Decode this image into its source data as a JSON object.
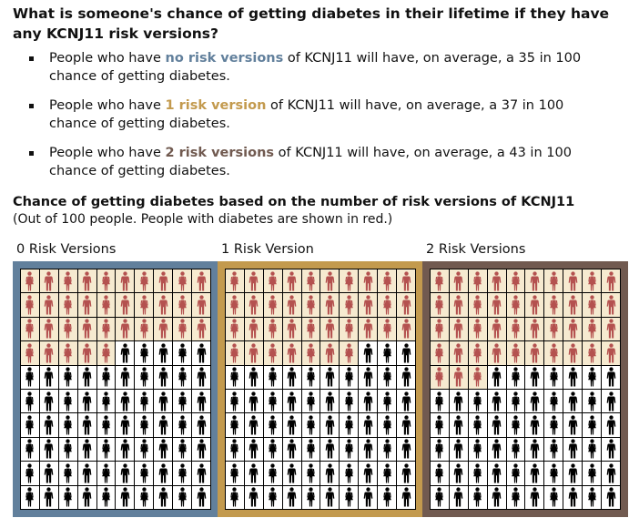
{
  "question": "What is someone's chance of getting diabetes in their lifetime if they have any KCNJ11 risk versions?",
  "bullets": [
    {
      "pre": "People who have ",
      "highlight": "no risk versions",
      "post": " of KCNJ11 will have, on average, a 35 in 100 chance of getting diabetes.",
      "color": "#62809c"
    },
    {
      "pre": "People who have ",
      "highlight": "1 risk version",
      "post": " of KCNJ11 will have, on average, a 37 in 100 chance of getting diabetes.",
      "color": "#c39a4e"
    },
    {
      "pre": "People who have ",
      "highlight": "2 risk versions",
      "post": " of KCNJ11 will have, on average, a 43 in 100 chance of getting diabetes.",
      "color": "#715a50"
    }
  ],
  "chart": {
    "title": "Chance of getting diabetes based on the number of risk versions of KCNJ11",
    "subtitle": "(Out of 100 people. People with diabetes are shown in red.)"
  },
  "panels": [
    {
      "label": "0 Risk Versions",
      "border_color": "#62809c",
      "diabetes_count": 35,
      "total": 100
    },
    {
      "label": "1 Risk Version",
      "border_color": "#c39a4e",
      "diabetes_count": 37,
      "total": 100
    },
    {
      "label": "2 Risk Versions",
      "border_color": "#715a50",
      "diabetes_count": 43,
      "total": 100
    }
  ],
  "colors": {
    "diabetes_figure": "#b4514f",
    "no_diabetes_figure": "#000000",
    "diabetes_cell_bg": "#f6ead0",
    "no_diabetes_cell_bg": "#ffffff"
  },
  "icons": [
    "female-figure-icon",
    "male-figure-icon"
  ]
}
